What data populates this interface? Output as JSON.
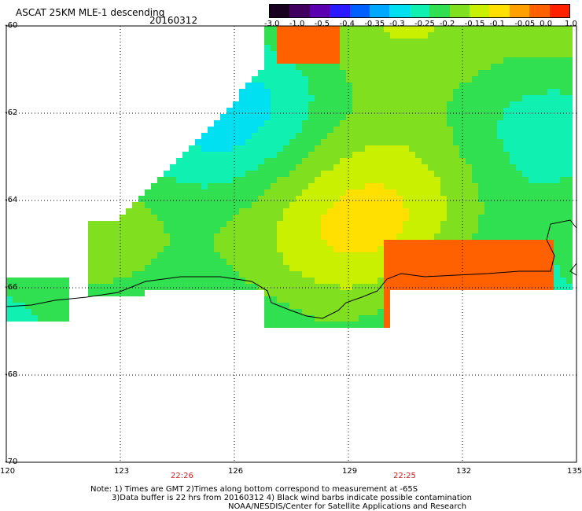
{
  "header": {
    "title": "ASCAT 25KM MLE-1 descending",
    "date": "20160312"
  },
  "colorbar": {
    "labels": [
      "-3.0",
      "-1.0",
      "-0.5",
      "-0.4",
      "-0.35",
      "-0.3",
      "-0.25",
      "-0.2",
      "-0.15",
      "-0.1",
      "-0.05",
      "0.0",
      "1.0"
    ],
    "colors": [
      "#1a0020",
      "#400060",
      "#5a00b0",
      "#2a1aff",
      "#0060ff",
      "#00a8ff",
      "#00e0f0",
      "#10f0b0",
      "#30e050",
      "#80e020",
      "#c8f000",
      "#ffe000",
      "#ffa000",
      "#ff6000",
      "#ff2000"
    ]
  },
  "axes": {
    "lat_labels": [
      "-60",
      "-62",
      "-64",
      "-66",
      "-68",
      "-70"
    ],
    "lon_labels": [
      "120",
      "123",
      "126",
      "129",
      "132",
      "135"
    ],
    "time_labels": [
      "22:26",
      "22:25"
    ]
  },
  "notes": [
    "Note: 1) Times are GMT 2)Times along bottom correspond to measurement at -65S",
    "3)Data buffer is 22 hrs from 20160312 4) Black wind barbs indicate possible contamination",
    "NOAA/NESDIS/Center for Satellite Applications and Research"
  ],
  "map_data": {
    "lat_range": [
      -70,
      -60
    ],
    "lon_range": [
      120,
      135
    ],
    "gridlines": true
  }
}
